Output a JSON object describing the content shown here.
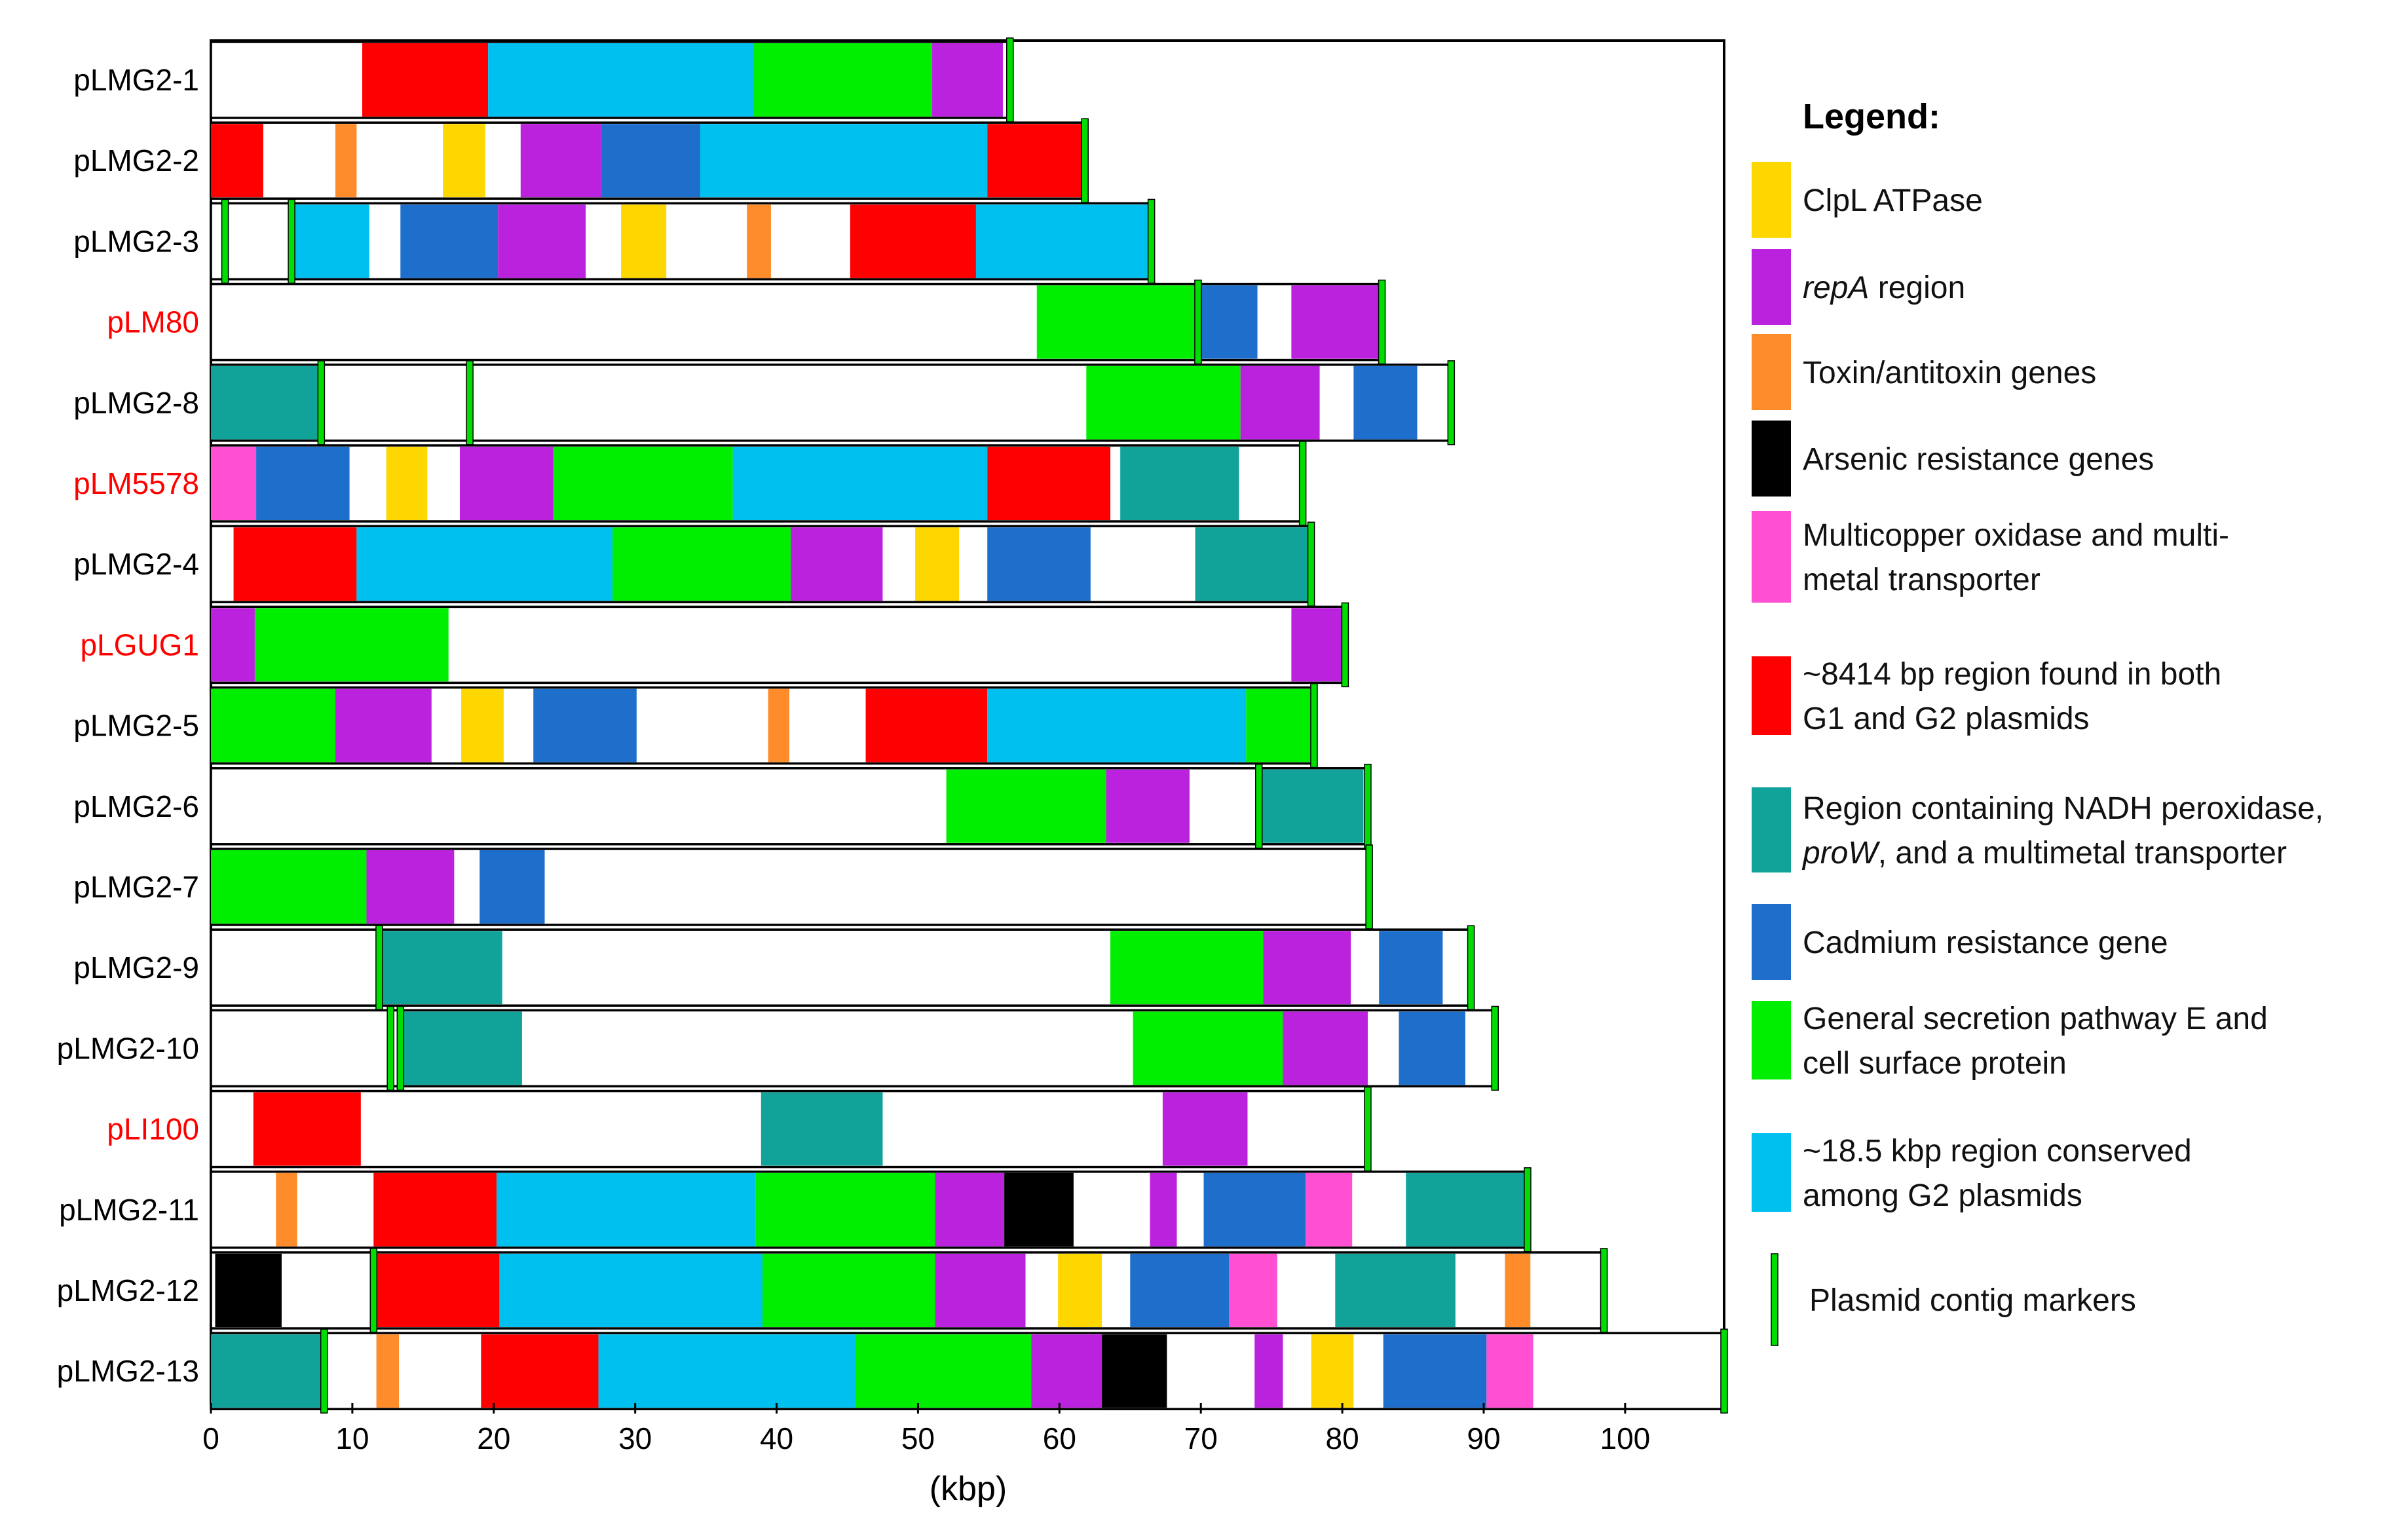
{
  "legend_title": "Legend:",
  "axis": {
    "label": "(kbp)",
    "min": 0,
    "max": 107,
    "ticks": [
      0,
      10,
      20,
      30,
      40,
      50,
      60,
      70,
      80,
      90,
      100
    ]
  },
  "colors": {
    "clpL": "#ffd700",
    "repA": "#bb22dd",
    "toxin": "#ff8c2a",
    "arsenic": "#000000",
    "copper": "#ff4fd2",
    "g1g2": "#ff0000",
    "nadh": "#11a39a",
    "cadmium": "#1e6fcc",
    "gsp": "#00ee00",
    "g2cons": "#00c0f0",
    "marker": "#00dd00"
  },
  "legend": [
    {
      "key": "clpL",
      "lines": [
        "ClpL ATPase"
      ]
    },
    {
      "key": "repA",
      "lines": [
        "repA region"
      ],
      "italic_prefix": "repA"
    },
    {
      "key": "toxin",
      "lines": [
        "Toxin/antitoxin genes"
      ]
    },
    {
      "key": "arsenic",
      "lines": [
        "Arsenic resistance genes"
      ]
    },
    {
      "key": "copper",
      "lines": [
        "Multicopper oxidase and multi-",
        "metal transporter"
      ]
    },
    {
      "key": "g1g2",
      "lines": [
        "~8414 bp region found in both",
        "G1 and G2 plasmids"
      ]
    },
    {
      "key": "nadh",
      "lines": [
        "Region containing NADH peroxidase,",
        "proW, and a multimetal transporter"
      ],
      "italic_prefix_line2": "proW"
    },
    {
      "key": "cadmium",
      "lines": [
        "Cadmium resistance gene"
      ]
    },
    {
      "key": "gsp",
      "lines": [
        "General secretion pathway E and",
        "cell surface protein"
      ]
    },
    {
      "key": "g2cons",
      "lines": [
        "~18.5 kbp region conserved",
        "among G2 plasmids"
      ]
    },
    {
      "key": "marker",
      "lines": [
        "Plasmid contig markers"
      ],
      "is_marker": true
    }
  ],
  "chart_data": {
    "type": "genome-map",
    "xlabel": "(kbp)",
    "xlim": [
      0,
      107
    ],
    "plasmids": [
      {
        "name": "pLMG2-1",
        "highlight": false,
        "length": 56.5,
        "segments": [
          [
            10.7,
            19.6,
            "g1g2"
          ],
          [
            19.6,
            38.4,
            "g2cons"
          ],
          [
            38.4,
            51,
            "gsp"
          ],
          [
            51,
            56,
            "repA"
          ]
        ],
        "markers": [
          56.5
        ]
      },
      {
        "name": "pLMG2-2",
        "highlight": false,
        "length": 61.8,
        "segments": [
          [
            0,
            3.7,
            "g1g2"
          ],
          [
            8.8,
            10.3,
            "toxin"
          ],
          [
            16.4,
            19.4,
            "clpL"
          ],
          [
            21.9,
            27.6,
            "repA"
          ],
          [
            27.6,
            34.6,
            "cadmium"
          ],
          [
            34.6,
            54.9,
            "g2cons"
          ],
          [
            54.9,
            61.6,
            "g1g2"
          ]
        ],
        "markers": [
          61.8
        ]
      },
      {
        "name": "pLMG2-3",
        "highlight": false,
        "length": 66.5,
        "segments": [
          [
            5.7,
            11.2,
            "g2cons"
          ],
          [
            13.4,
            20.3,
            "cadmium"
          ],
          [
            20.3,
            26.5,
            "repA"
          ],
          [
            29,
            32.2,
            "clpL"
          ],
          [
            37.9,
            39.6,
            "toxin"
          ],
          [
            45.2,
            54.1,
            "g1g2"
          ],
          [
            54.1,
            66.3,
            "g2cons"
          ]
        ],
        "markers": [
          1,
          5.7,
          66.5
        ]
      },
      {
        "name": "pLM80",
        "highlight": true,
        "length": 82.8,
        "segments": [
          [
            58.4,
            69.8,
            "gsp"
          ],
          [
            69.8,
            74,
            "cadmium"
          ],
          [
            76.4,
            82.6,
            "repA"
          ]
        ],
        "markers": [
          69.8,
          82.8
        ]
      },
      {
        "name": "pLMG2-8",
        "highlight": false,
        "length": 87.7,
        "segments": [
          [
            0,
            7.8,
            "nadh"
          ],
          [
            61.9,
            72.8,
            "gsp"
          ],
          [
            72.8,
            78.4,
            "repA"
          ],
          [
            80.8,
            85.3,
            "cadmium"
          ]
        ],
        "markers": [
          7.8,
          18.3,
          87.7
        ]
      },
      {
        "name": "pLM5578",
        "highlight": true,
        "length": 77.2,
        "segments": [
          [
            0,
            3.2,
            "copper"
          ],
          [
            3.2,
            9.8,
            "cadmium"
          ],
          [
            12.4,
            15.3,
            "clpL"
          ],
          [
            17.6,
            24.2,
            "repA"
          ],
          [
            24.2,
            36.9,
            "gsp"
          ],
          [
            36.9,
            54.9,
            "g2cons"
          ],
          [
            54.9,
            63.6,
            "g1g2"
          ],
          [
            64.3,
            72.7,
            "nadh"
          ]
        ],
        "markers": [
          77.2
        ]
      },
      {
        "name": "pLMG2-4",
        "highlight": false,
        "length": 77.8,
        "segments": [
          [
            1.6,
            10.3,
            "g1g2"
          ],
          [
            10.3,
            28.4,
            "g2cons"
          ],
          [
            28.4,
            41,
            "gsp"
          ],
          [
            41,
            47.5,
            "repA"
          ],
          [
            49.8,
            52.9,
            "clpL"
          ],
          [
            54.9,
            62.2,
            "cadmium"
          ],
          [
            69.6,
            77.6,
            "nadh"
          ]
        ],
        "markers": [
          77.8
        ]
      },
      {
        "name": "pLGUG1",
        "highlight": true,
        "length": 80.2,
        "segments": [
          [
            0,
            3.1,
            "repA"
          ],
          [
            3.1,
            16.8,
            "gsp"
          ],
          [
            76.4,
            80,
            "repA"
          ]
        ],
        "markers": [
          80.2
        ]
      },
      {
        "name": "pLMG2-5",
        "highlight": false,
        "length": 78,
        "segments": [
          [
            0,
            8.8,
            "gsp"
          ],
          [
            8.8,
            15.6,
            "repA"
          ],
          [
            17.7,
            20.7,
            "clpL"
          ],
          [
            22.8,
            30.1,
            "cadmium"
          ],
          [
            39.4,
            40.9,
            "toxin"
          ],
          [
            46.3,
            54.9,
            "g1g2"
          ],
          [
            54.9,
            73.2,
            "g2cons"
          ],
          [
            73.2,
            78,
            "gsp"
          ]
        ],
        "markers": [
          78
        ]
      },
      {
        "name": "pLMG2-6",
        "highlight": false,
        "length": 81.8,
        "segments": [
          [
            52,
            63.3,
            "gsp"
          ],
          [
            63.3,
            69.2,
            "repA"
          ],
          [
            74.1,
            81.5,
            "nadh"
          ]
        ],
        "markers": [
          74.1,
          81.8
        ]
      },
      {
        "name": "pLMG2-7",
        "highlight": false,
        "length": 81.9,
        "segments": [
          [
            0,
            11,
            "gsp"
          ],
          [
            11,
            17.2,
            "repA"
          ],
          [
            19,
            23.6,
            "cadmium"
          ]
        ],
        "markers": [
          81.9
        ]
      },
      {
        "name": "pLMG2-9",
        "highlight": false,
        "length": 89.1,
        "segments": [
          [
            11.9,
            20.6,
            "nadh"
          ],
          [
            63.6,
            74.4,
            "gsp"
          ],
          [
            74.4,
            80.6,
            "repA"
          ],
          [
            82.6,
            87.1,
            "cadmium"
          ]
        ],
        "markers": [
          11.9,
          89.1
        ]
      },
      {
        "name": "pLMG2-10",
        "highlight": false,
        "length": 90.8,
        "segments": [
          [
            13.4,
            22,
            "nadh"
          ],
          [
            65.2,
            75.8,
            "gsp"
          ],
          [
            75.8,
            81.8,
            "repA"
          ],
          [
            84,
            88.7,
            "cadmium"
          ]
        ],
        "markers": [
          12.7,
          13.4,
          90.8
        ]
      },
      {
        "name": "pLI100",
        "highlight": true,
        "length": 81.8,
        "segments": [
          [
            3,
            10.6,
            "g1g2"
          ],
          [
            38.9,
            47.5,
            "nadh"
          ],
          [
            67.3,
            73.3,
            "repA"
          ]
        ],
        "markers": [
          81.8
        ]
      },
      {
        "name": "pLMG2-11",
        "highlight": false,
        "length": 93.1,
        "segments": [
          [
            4.6,
            6.1,
            "toxin"
          ],
          [
            11.5,
            20.2,
            "g1g2"
          ],
          [
            20.2,
            38.5,
            "g2cons"
          ],
          [
            38.5,
            51.2,
            "gsp"
          ],
          [
            51.2,
            56.1,
            "repA"
          ],
          [
            56.1,
            61,
            "arsenic"
          ],
          [
            66.4,
            68.3,
            "repA"
          ],
          [
            70.2,
            77.4,
            "cadmium"
          ],
          [
            77.4,
            80.7,
            "copper"
          ],
          [
            84.5,
            93,
            "nadh"
          ]
        ],
        "markers": [
          93.1
        ]
      },
      {
        "name": "pLMG2-12",
        "highlight": false,
        "length": 98.5,
        "segments": [
          [
            0.3,
            5,
            "arsenic"
          ],
          [
            11.5,
            20.4,
            "g1g2"
          ],
          [
            20.4,
            39,
            "g2cons"
          ],
          [
            39,
            51.2,
            "gsp"
          ],
          [
            51.2,
            57.6,
            "repA"
          ],
          [
            59.9,
            63,
            "clpL"
          ],
          [
            65,
            72,
            "cadmium"
          ],
          [
            72,
            75.4,
            "copper"
          ],
          [
            79.5,
            88,
            "nadh"
          ],
          [
            91.5,
            93.3,
            "toxin"
          ]
        ],
        "markers": [
          11.5,
          98.5
        ]
      },
      {
        "name": "pLMG2-13",
        "highlight": false,
        "length": 107,
        "segments": [
          [
            0,
            7.8,
            "nadh"
          ],
          [
            11.7,
            13.3,
            "toxin"
          ],
          [
            19.1,
            27.4,
            "g1g2"
          ],
          [
            27.4,
            45.6,
            "g2cons"
          ],
          [
            45.6,
            58,
            "gsp"
          ],
          [
            58,
            63,
            "repA"
          ],
          [
            63,
            67.6,
            "arsenic"
          ],
          [
            73.8,
            75.8,
            "repA"
          ],
          [
            77.8,
            80.8,
            "clpL"
          ],
          [
            82.9,
            90.2,
            "cadmium"
          ],
          [
            90.2,
            93.5,
            "copper"
          ]
        ],
        "markers": [
          8,
          107
        ]
      }
    ]
  }
}
